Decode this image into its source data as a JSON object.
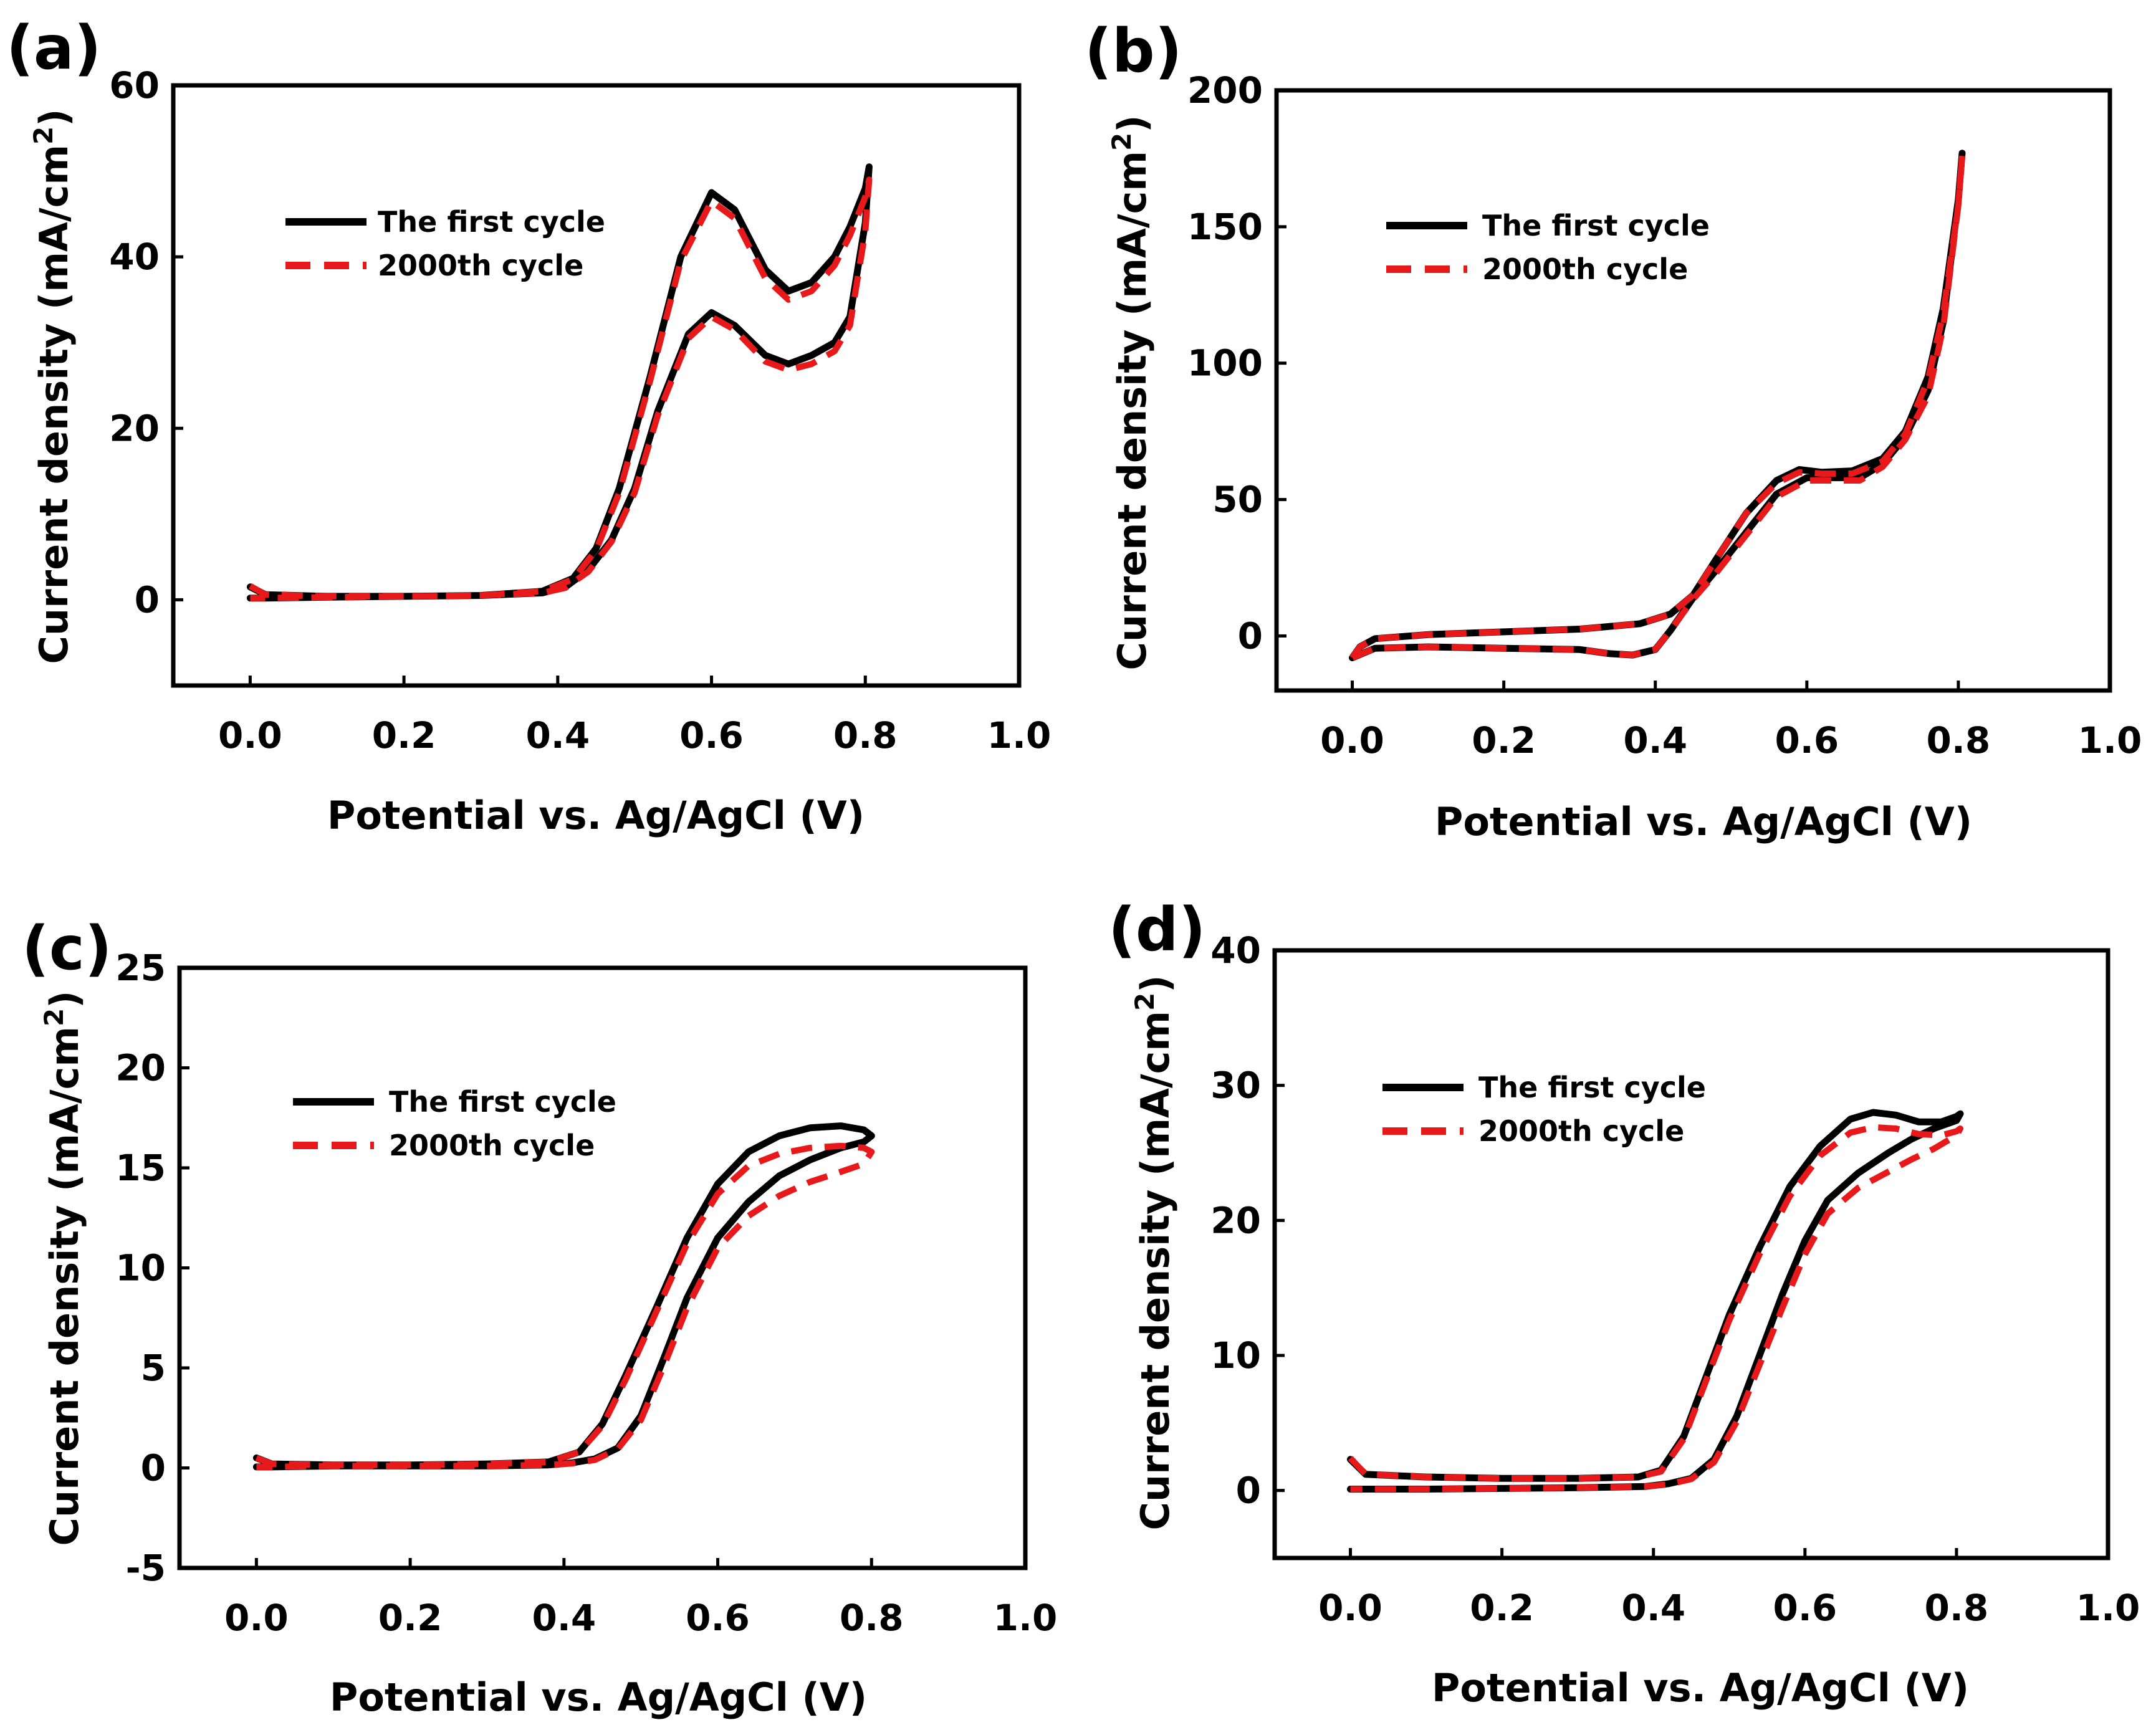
{
  "colors": {
    "first_cycle": "#000000",
    "cycle_2000": "#e8191a",
    "axis": "#000000"
  },
  "chart_data": [
    {
      "type": "line",
      "panel": "(a)",
      "xlabel": "Potential vs. Ag/AgCl (V)",
      "ylabel": "Current density (mA/cm",
      "ylabel_sup": "2",
      "ylabel_end": ")",
      "xlim": [
        -0.1,
        1.0
      ],
      "ylim": [
        -10,
        60
      ],
      "xticks": [
        0.0,
        0.2,
        0.4,
        0.6,
        0.8,
        1.0
      ],
      "xtick_labels": [
        "0.0",
        "0.2",
        "0.4",
        "0.6",
        "0.8",
        "1.0"
      ],
      "yticks": [
        0,
        20,
        40,
        60
      ],
      "ytick_labels": [
        "0",
        "20",
        "40",
        "60"
      ],
      "legend": [
        "The first cycle",
        "2000th cycle"
      ],
      "series": [
        {
          "name": "The first cycle",
          "style": "solid",
          "x": [
            0.0,
            0.02,
            0.1,
            0.2,
            0.3,
            0.38,
            0.42,
            0.45,
            0.48,
            0.52,
            0.56,
            0.6,
            0.63,
            0.67,
            0.7,
            0.73,
            0.76,
            0.78,
            0.8,
            0.805,
            0.8,
            0.78,
            0.76,
            0.73,
            0.7,
            0.67,
            0.63,
            0.6,
            0.57,
            0.53,
            0.5,
            0.47,
            0.44,
            0.41,
            0.38,
            0.3,
            0.2,
            0.1,
            0.02,
            0.0
          ],
          "y": [
            1.5,
            0.6,
            0.4,
            0.4,
            0.5,
            1.0,
            2.5,
            6,
            13,
            26,
            40,
            47.5,
            45.5,
            38.5,
            36,
            37,
            40,
            43.5,
            48,
            50.5,
            44,
            33,
            30,
            28.5,
            27.5,
            28.5,
            32,
            33.5,
            31,
            22,
            13,
            7,
            3.5,
            1.5,
            0.8,
            0.5,
            0.4,
            0.3,
            0.2,
            0.2
          ]
        },
        {
          "name": "2000th cycle",
          "style": "dashed",
          "x": [
            0.0,
            0.02,
            0.1,
            0.2,
            0.3,
            0.38,
            0.42,
            0.45,
            0.48,
            0.52,
            0.56,
            0.6,
            0.63,
            0.67,
            0.7,
            0.73,
            0.76,
            0.78,
            0.8,
            0.805,
            0.8,
            0.78,
            0.76,
            0.73,
            0.7,
            0.67,
            0.63,
            0.6,
            0.57,
            0.53,
            0.5,
            0.47,
            0.44,
            0.41,
            0.38,
            0.3,
            0.2,
            0.1,
            0.02,
            0.0
          ],
          "y": [
            1.6,
            0.6,
            0.4,
            0.4,
            0.5,
            1.0,
            2.4,
            5.8,
            12.5,
            25.5,
            39.5,
            46.5,
            44.5,
            37.5,
            35,
            36,
            39,
            42.5,
            47,
            49,
            43,
            32,
            29,
            27.5,
            26.8,
            27.8,
            31.5,
            33,
            30.5,
            21.5,
            12.5,
            6.8,
            3.3,
            1.4,
            0.8,
            0.5,
            0.4,
            0.3,
            0.2,
            0.2
          ]
        }
      ]
    },
    {
      "type": "line",
      "panel": "(b)",
      "xlabel": "Potential vs. Ag/AgCl (V)",
      "ylabel": "Current density (mA/cm",
      "ylabel_sup": "2",
      "ylabel_end": ")",
      "xlim": [
        -0.1,
        1.0
      ],
      "ylim": [
        -20,
        200
      ],
      "xticks": [
        0.0,
        0.2,
        0.4,
        0.6,
        0.8,
        1.0
      ],
      "xtick_labels": [
        "0.0",
        "0.2",
        "0.4",
        "0.6",
        "0.8",
        "1.0"
      ],
      "yticks": [
        0,
        50,
        100,
        150,
        200
      ],
      "ytick_labels": [
        "0",
        "50",
        "100",
        "150",
        "200"
      ],
      "legend": [
        "The first cycle",
        "2000th cycle"
      ],
      "series": [
        {
          "name": "The first cycle",
          "style": "solid",
          "x": [
            0.0,
            0.01,
            0.03,
            0.1,
            0.2,
            0.3,
            0.38,
            0.42,
            0.45,
            0.48,
            0.52,
            0.56,
            0.59,
            0.62,
            0.66,
            0.7,
            0.73,
            0.76,
            0.78,
            0.8,
            0.805,
            0.8,
            0.78,
            0.76,
            0.73,
            0.7,
            0.67,
            0.63,
            0.6,
            0.56,
            0.52,
            0.48,
            0.45,
            0.42,
            0.4,
            0.37,
            0.34,
            0.3,
            0.2,
            0.1,
            0.03,
            0.0
          ],
          "y": [
            -8,
            -4,
            -1,
            0.5,
            1.5,
            2.5,
            4.5,
            8,
            15,
            28,
            45,
            57,
            61,
            60,
            60.5,
            65,
            75,
            95,
            120,
            160,
            177,
            160,
            115,
            90,
            73,
            63,
            58,
            58,
            58,
            52,
            38,
            24,
            14,
            2,
            -5,
            -7,
            -6.5,
            -5,
            -4.5,
            -4,
            -4.5,
            -8
          ]
        },
        {
          "name": "2000th cycle",
          "style": "dashed",
          "x": [
            0.0,
            0.01,
            0.03,
            0.1,
            0.2,
            0.3,
            0.38,
            0.42,
            0.45,
            0.48,
            0.52,
            0.56,
            0.59,
            0.62,
            0.66,
            0.7,
            0.73,
            0.76,
            0.78,
            0.8,
            0.805,
            0.8,
            0.78,
            0.76,
            0.73,
            0.7,
            0.67,
            0.63,
            0.6,
            0.56,
            0.52,
            0.48,
            0.45,
            0.42,
            0.4,
            0.37,
            0.34,
            0.3,
            0.2,
            0.1,
            0.03,
            0.0
          ],
          "y": [
            -8,
            -4,
            -1,
            0.5,
            1.5,
            2.5,
            4.5,
            8,
            15,
            28,
            45,
            56,
            60,
            59.5,
            59.5,
            64,
            74,
            94,
            118,
            158,
            176,
            158,
            113,
            88,
            72,
            62,
            57,
            57,
            57,
            51,
            37,
            23,
            13.5,
            2,
            -5,
            -7,
            -6.5,
            -5,
            -4.5,
            -4,
            -4.5,
            -8
          ]
        }
      ]
    },
    {
      "type": "line",
      "panel": "(c)",
      "xlabel": "Potential vs. Ag/AgCl (V)",
      "ylabel": "Current density (mA/cm",
      "ylabel_sup": "2",
      "ylabel_end": ")",
      "xlim": [
        -0.1,
        1.0
      ],
      "ylim": [
        -5,
        25
      ],
      "xticks": [
        0.0,
        0.2,
        0.4,
        0.6,
        0.8,
        1.0
      ],
      "xtick_labels": [
        "0.0",
        "0.2",
        "0.4",
        "0.6",
        "0.8",
        "1.0"
      ],
      "yticks": [
        -5,
        0,
        5,
        10,
        15,
        20,
        25
      ],
      "ytick_labels": [
        "-5",
        "0",
        "5",
        "10",
        "15",
        "20",
        "25"
      ],
      "legend": [
        "The first cycle",
        "2000th cycle"
      ],
      "series": [
        {
          "name": "The first cycle",
          "style": "solid",
          "x": [
            0.0,
            0.02,
            0.1,
            0.2,
            0.3,
            0.38,
            0.42,
            0.45,
            0.48,
            0.52,
            0.56,
            0.6,
            0.64,
            0.68,
            0.72,
            0.76,
            0.79,
            0.8,
            0.79,
            0.76,
            0.72,
            0.68,
            0.64,
            0.6,
            0.56,
            0.53,
            0.5,
            0.47,
            0.44,
            0.41,
            0.38,
            0.3,
            0.2,
            0.1,
            0.02,
            0.0
          ],
          "y": [
            0.5,
            0.2,
            0.15,
            0.15,
            0.2,
            0.3,
            0.8,
            2.2,
            4.6,
            8.0,
            11.5,
            14.2,
            15.8,
            16.6,
            17.0,
            17.1,
            16.9,
            16.6,
            16.3,
            16.0,
            15.4,
            14.6,
            13.3,
            11.5,
            8.5,
            5.5,
            2.6,
            1.0,
            0.45,
            0.25,
            0.15,
            0.1,
            0.1,
            0.1,
            0.05,
            0.05
          ]
        },
        {
          "name": "2000th cycle",
          "style": "dashed",
          "x": [
            0.0,
            0.02,
            0.1,
            0.2,
            0.3,
            0.38,
            0.42,
            0.45,
            0.48,
            0.52,
            0.56,
            0.6,
            0.64,
            0.68,
            0.72,
            0.76,
            0.79,
            0.8,
            0.79,
            0.76,
            0.72,
            0.68,
            0.64,
            0.6,
            0.56,
            0.53,
            0.5,
            0.47,
            0.44,
            0.41,
            0.38,
            0.3,
            0.2,
            0.1,
            0.02,
            0.0
          ],
          "y": [
            0.5,
            0.2,
            0.15,
            0.15,
            0.2,
            0.3,
            0.8,
            2.1,
            4.4,
            7.8,
            11.2,
            13.7,
            15.1,
            15.7,
            16.0,
            16.1,
            16.0,
            15.8,
            15.2,
            14.8,
            14.3,
            13.6,
            12.6,
            11.0,
            8.0,
            5.1,
            2.4,
            0.95,
            0.4,
            0.22,
            0.15,
            0.1,
            0.1,
            0.1,
            0.05,
            0.05
          ]
        }
      ]
    },
    {
      "type": "line",
      "panel": "(d)",
      "xlabel": "Potential vs. Ag/AgCl (V)",
      "ylabel": "Current density (mA/cm",
      "ylabel_sup": "2",
      "ylabel_end": ")",
      "xlim": [
        -0.1,
        1.0
      ],
      "ylim": [
        -5,
        40
      ],
      "xticks": [
        0.0,
        0.2,
        0.4,
        0.6,
        0.8,
        1.0
      ],
      "xtick_labels": [
        "0.0",
        "0.2",
        "0.4",
        "0.6",
        "0.8",
        "1.0"
      ],
      "yticks": [
        0,
        10,
        20,
        30,
        40
      ],
      "ytick_labels": [
        "0",
        "10",
        "20",
        "30",
        "40"
      ],
      "legend": [
        "The first cycle",
        "2000th cycle"
      ],
      "series": [
        {
          "name": "The first cycle",
          "style": "solid",
          "x": [
            0.0,
            0.02,
            0.1,
            0.2,
            0.3,
            0.38,
            0.41,
            0.44,
            0.47,
            0.5,
            0.54,
            0.58,
            0.62,
            0.66,
            0.69,
            0.72,
            0.75,
            0.78,
            0.8,
            0.805,
            0.8,
            0.77,
            0.74,
            0.71,
            0.67,
            0.63,
            0.6,
            0.57,
            0.54,
            0.51,
            0.48,
            0.45,
            0.42,
            0.39,
            0.3,
            0.2,
            0.1,
            0.02,
            0.0
          ],
          "y": [
            2.3,
            1.2,
            1.0,
            0.9,
            0.9,
            1.0,
            1.5,
            4.0,
            8.5,
            13.0,
            18.0,
            22.5,
            25.5,
            27.5,
            28.0,
            27.8,
            27.3,
            27.3,
            27.7,
            27.9,
            27.4,
            26.8,
            26.0,
            25.0,
            23.5,
            21.5,
            18.5,
            14.5,
            10.0,
            5.5,
            2.3,
            0.9,
            0.5,
            0.3,
            0.2,
            0.15,
            0.1,
            0.1,
            0.1
          ]
        },
        {
          "name": "2000th cycle",
          "style": "dashed",
          "x": [
            0.0,
            0.02,
            0.1,
            0.2,
            0.3,
            0.38,
            0.41,
            0.44,
            0.47,
            0.5,
            0.54,
            0.58,
            0.62,
            0.66,
            0.69,
            0.72,
            0.75,
            0.78,
            0.8,
            0.805,
            0.8,
            0.77,
            0.74,
            0.71,
            0.67,
            0.63,
            0.6,
            0.57,
            0.54,
            0.51,
            0.48,
            0.45,
            0.42,
            0.39,
            0.3,
            0.2,
            0.1,
            0.02,
            0.0
          ],
          "y": [
            2.4,
            1.2,
            1.0,
            0.9,
            0.9,
            1.0,
            1.4,
            3.8,
            8.2,
            12.6,
            17.5,
            21.8,
            24.8,
            26.5,
            26.9,
            26.8,
            26.4,
            26.3,
            26.6,
            26.8,
            26.3,
            25.3,
            24.5,
            23.6,
            22.4,
            20.5,
            17.5,
            13.5,
            9.3,
            5.1,
            2.1,
            0.85,
            0.45,
            0.3,
            0.2,
            0.15,
            0.1,
            0.1,
            0.1
          ]
        }
      ]
    }
  ]
}
